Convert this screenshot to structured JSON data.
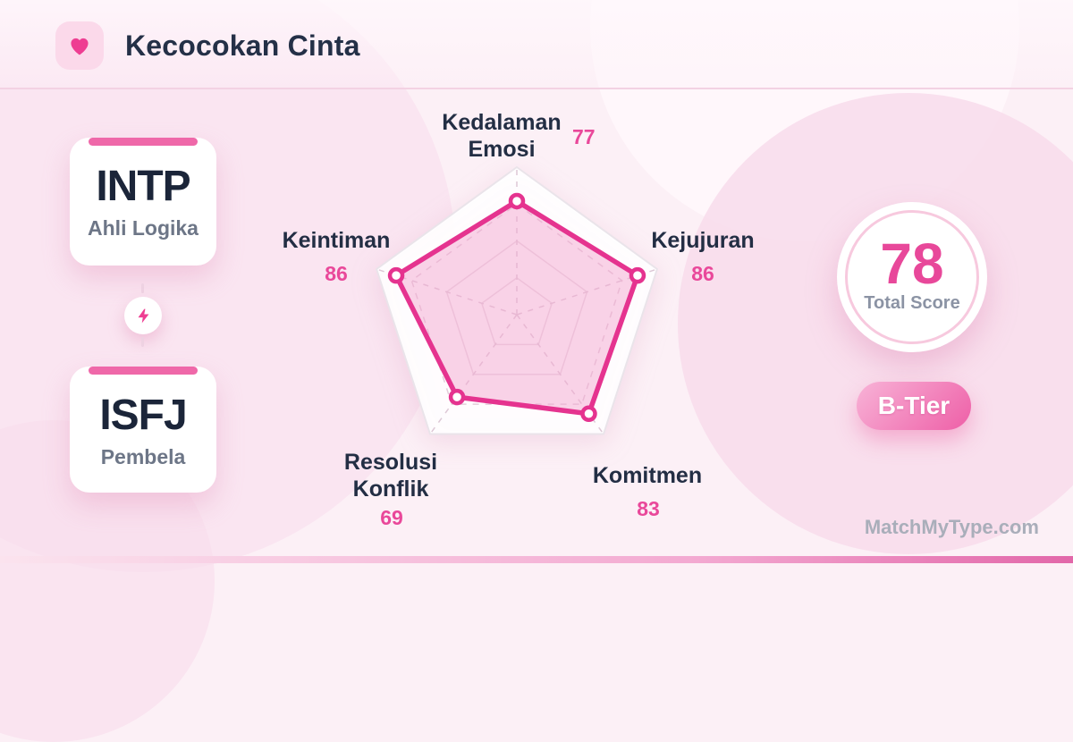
{
  "header": {
    "title": "Kecocokan Cinta",
    "icon": "heart"
  },
  "pair": {
    "left": {
      "code": "INTP",
      "name": "Ahli Logika"
    },
    "right": {
      "code": "ISFJ",
      "name": "Pembela"
    }
  },
  "connector_icon": "lightning",
  "chart_data": {
    "type": "radar",
    "categories": [
      "Kedalaman Emosi",
      "Kejujuran",
      "Komitmen",
      "Resolusi Konflik",
      "Keintiman"
    ],
    "values": [
      77,
      86,
      83,
      69,
      86
    ],
    "max": 100,
    "grid_levels": [
      0.25,
      0.5,
      0.75,
      1.0
    ],
    "legend": "none",
    "colors": {
      "stroke": "#e5338f",
      "fill": "#f3a8d0",
      "fill_opacity": 0.5
    }
  },
  "score": {
    "value": "78",
    "label": "Total Score",
    "tier": "B-Tier"
  },
  "watermark": "MatchMyType.com",
  "accent_colors": {
    "pink": "#e9489a",
    "dark": "#232e44",
    "bar": "#ef68a9"
  }
}
